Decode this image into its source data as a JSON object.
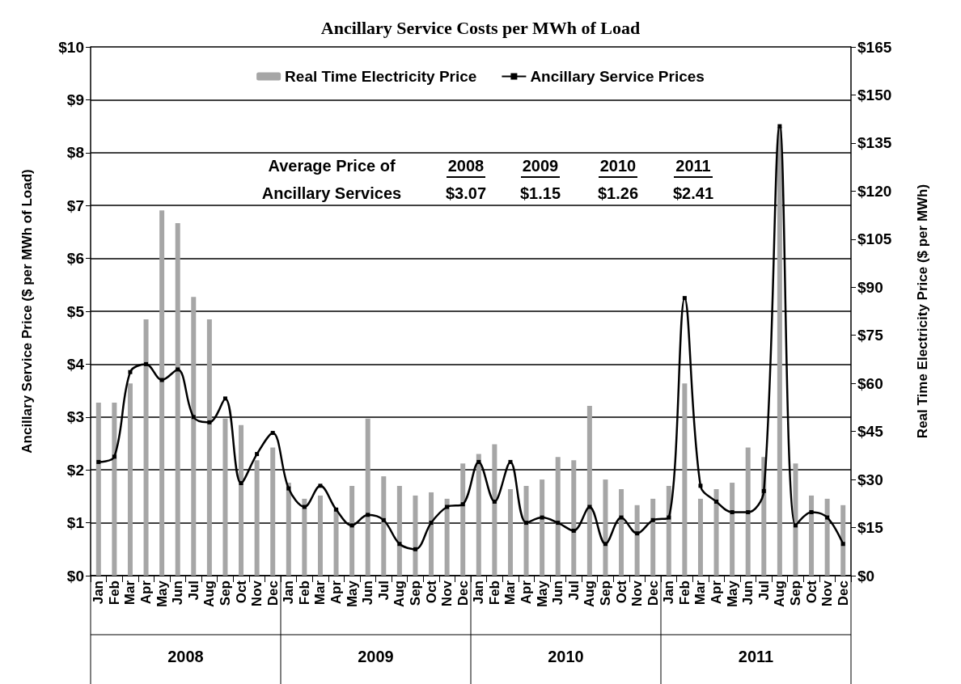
{
  "chart_data": {
    "type": "bar",
    "title": "Ancillary Service Costs per MWh of Load",
    "ylabel": "Ancillary Service Price ($ per MWh of Load)",
    "y2label": "Real Time Electricity Price ($ per MWh)",
    "categories": [
      "Jan",
      "Feb",
      "Mar",
      "Apr",
      "May",
      "Jun",
      "Jul",
      "Aug",
      "Sep",
      "Oct",
      "Nov",
      "Dec",
      "Jan",
      "Feb",
      "Mar",
      "Apr",
      "May",
      "Jun",
      "Jul",
      "Aug",
      "Sep",
      "Oct",
      "Nov",
      "Dec",
      "Jan",
      "Feb",
      "Mar",
      "Apr",
      "May",
      "Jun",
      "Jul",
      "Aug",
      "Sep",
      "Oct",
      "Nov",
      "Dec",
      "Jan",
      "Feb",
      "Mar",
      "Apr",
      "May",
      "Jun",
      "Jul",
      "Aug",
      "Sep",
      "Oct",
      "Nov",
      "Dec"
    ],
    "series": [
      {
        "name": "Real Time Electricity Price",
        "axis": "y2",
        "color": "#a6a6a6",
        "values": [
          54,
          54,
          60,
          80,
          114,
          110,
          87,
          80,
          49,
          47,
          36,
          40,
          29,
          24,
          25,
          21,
          28,
          49,
          31,
          28,
          25,
          26,
          24,
          35,
          38,
          41,
          27,
          28,
          30,
          37,
          36,
          53,
          30,
          27,
          22,
          24,
          28,
          60,
          24,
          27,
          29,
          40,
          37,
          140,
          35,
          25,
          24,
          22
        ]
      },
      {
        "name": "Ancillary Service Prices",
        "type": "line",
        "axis": "y",
        "color": "#000000",
        "marker": "square",
        "line_style": "solid",
        "values": [
          2.15,
          2.25,
          3.85,
          4.0,
          3.7,
          3.9,
          3.0,
          2.9,
          3.35,
          1.75,
          2.3,
          2.7,
          1.65,
          1.3,
          1.7,
          1.25,
          0.95,
          1.15,
          1.05,
          0.6,
          0.5,
          1.0,
          1.3,
          1.35,
          2.15,
          1.4,
          2.15,
          1.0,
          1.1,
          1.0,
          0.85,
          1.3,
          0.6,
          1.1,
          0.8,
          1.05,
          1.1,
          5.25,
          1.7,
          1.4,
          1.2,
          1.2,
          1.6,
          8.5,
          0.95,
          1.2,
          1.1,
          0.6
        ]
      }
    ],
    "ylim": [
      0,
      10
    ],
    "yticks": [
      {
        "value": 0,
        "label": "$0"
      },
      {
        "value": 1,
        "label": "$1"
      },
      {
        "value": 2,
        "label": "$2"
      },
      {
        "value": 3,
        "label": "$3"
      },
      {
        "value": 4,
        "label": "$4"
      },
      {
        "value": 5,
        "label": "$5"
      },
      {
        "value": 6,
        "label": "$6"
      },
      {
        "value": 7,
        "label": "$7"
      },
      {
        "value": 8,
        "label": "$8"
      },
      {
        "value": 9,
        "label": "$9"
      },
      {
        "value": 10,
        "label": "$10"
      }
    ],
    "y2lim": [
      0,
      165
    ],
    "y2ticks": [
      {
        "value": 0,
        "label": "$0"
      },
      {
        "value": 15,
        "label": "$15"
      },
      {
        "value": 30,
        "label": "$30"
      },
      {
        "value": 45,
        "label": "$45"
      },
      {
        "value": 60,
        "label": "$60"
      },
      {
        "value": 75,
        "label": "$75"
      },
      {
        "value": 90,
        "label": "$90"
      },
      {
        "value": 105,
        "label": "$105"
      },
      {
        "value": 120,
        "label": "$120"
      },
      {
        "value": 135,
        "label": "$135"
      },
      {
        "value": 150,
        "label": "$150"
      },
      {
        "value": 165,
        "label": "$165"
      }
    ],
    "annotations": [
      "Average Price of",
      "Ancillary Services",
      "2008",
      "2009",
      "2010",
      "2011",
      "$3.07",
      "$1.15",
      "$1.26",
      "$2.41",
      "2008",
      "2009",
      "2010",
      "2011"
    ],
    "grid": "y",
    "legend": "top"
  }
}
